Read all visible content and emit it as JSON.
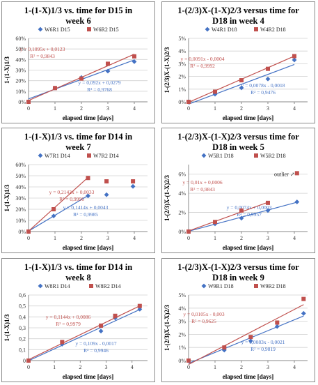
{
  "chart_data": [
    {
      "type": "scatter",
      "title": "1-(1-X)1/3 vs. time for D15 in week 6",
      "title_lines": [
        "1-(1-X)1/3 vs. time for D15 in",
        "week 6"
      ],
      "xlabel": "elapsed time [days]",
      "ylabel": "1-(1-X)1/3",
      "xlim": [
        0,
        4.5
      ],
      "xticks": [
        0,
        1,
        2,
        3,
        4
      ],
      "ylim": [
        0,
        0.6
      ],
      "yticks": [
        0,
        0.1,
        0.2,
        0.3,
        0.4,
        0.5,
        0.6
      ],
      "ytick_labels": [
        "0%",
        "10%",
        "20%",
        "30%",
        "40%",
        "50%",
        "60%"
      ],
      "legend": "top",
      "series": [
        {
          "name": "W6R1 D15",
          "marker": "diamond",
          "color": "#4472c4",
          "x": [
            0,
            1,
            2,
            3,
            4
          ],
          "y": [
            0,
            0.13,
            0.23,
            0.29,
            0.38
          ],
          "fit": {
            "slope": 0.092,
            "intercept": 0.0279,
            "x_range": [
              0,
              4
            ]
          },
          "equation": "y = 0,092x + 0,0279",
          "r2": "R² = 0,9768"
        },
        {
          "name": "W6R2 D15",
          "marker": "square",
          "color": "#c0504d",
          "x": [
            0,
            1,
            2,
            3,
            4
          ],
          "y": [
            0,
            0.13,
            0.22,
            0.36,
            0.43
          ],
          "fit": {
            "slope": 0.1095,
            "intercept": 0.0123,
            "x_range": [
              0,
              4
            ]
          },
          "equation": "y = 0,1095x + 0,0123",
          "r2": "R² = 0,9843"
        }
      ]
    },
    {
      "type": "scatter",
      "title": "1-(2/3)X-(1-X)2/3 versus time for D18 in week 4",
      "title_lines": [
        "1-(2/3)X-(1-X)2/3 versus time for",
        "D18 in week 4"
      ],
      "xlabel": "elapsed time [days]",
      "ylabel": "1-(2/3)X-(1-X)2/3",
      "xlim": [
        0,
        4.5
      ],
      "xticks": [
        0,
        1,
        2,
        3,
        4
      ],
      "ylim": [
        0,
        0.05
      ],
      "yticks": [
        0,
        0.01,
        0.02,
        0.03,
        0.04,
        0.05
      ],
      "ytick_labels": [
        "0%",
        "1%",
        "2%",
        "3%",
        "4%",
        "5%"
      ],
      "legend": "top",
      "series": [
        {
          "name": "W4R1 D18",
          "marker": "diamond",
          "color": "#4472c4",
          "x": [
            0,
            1,
            2,
            3,
            4
          ],
          "y": [
            0,
            0.006,
            0.011,
            0.018,
            0.033
          ],
          "fit": {
            "slope": 0.0078,
            "intercept": -0.0018,
            "x_range": [
              0,
              4
            ]
          },
          "equation": "y = 0,0078x - 0,0018",
          "r2": "R² = 0,9476"
        },
        {
          "name": "W4R2 D18",
          "marker": "square",
          "color": "#c0504d",
          "x": [
            0,
            1,
            2,
            3,
            4
          ],
          "y": [
            0,
            0.008,
            0.017,
            0.026,
            0.036
          ],
          "fit": {
            "slope": 0.0091,
            "intercept": -0.0004,
            "x_range": [
              0,
              4
            ]
          },
          "equation": "y = 0,0091x - 0,0004",
          "r2": "R² = 0,9992"
        }
      ]
    },
    {
      "type": "scatter",
      "title": "1-(1-X)1/3 vs. time for D14 in week 7",
      "title_lines": [
        "1-(1-X)1/3 vs. time for D14 in",
        "week 7"
      ],
      "xlabel": "elapsed time [days]",
      "ylabel": "1-(1-X)1/3",
      "xlim": [
        0,
        4.5
      ],
      "xticks": [
        0,
        1,
        2,
        3,
        4
      ],
      "ylim": [
        0,
        0.6
      ],
      "yticks": [
        0,
        0.1,
        0.2,
        0.3,
        0.4,
        0.5,
        0.6
      ],
      "ytick_labels": [
        "0%",
        "10%",
        "20%",
        "30%",
        "40%",
        "50%",
        "60%"
      ],
      "legend": "top",
      "series": [
        {
          "name": "W7R1 D14",
          "marker": "diamond",
          "color": "#4472c4",
          "x": [
            0,
            0.95,
            2.25,
            2.95,
            3.95
          ],
          "y": [
            0,
            0.14,
            0.32,
            0.33,
            0.405
          ],
          "fit": {
            "slope": 0.1414,
            "intercept": 0.0043,
            "x_range": [
              0,
              2.25
            ]
          },
          "equation": "y = 0,1414x + 0,0043",
          "r2": "R² = 0,9985"
        },
        {
          "name": "W7R2 D14",
          "marker": "square",
          "color": "#c0504d",
          "x": [
            0,
            0.95,
            2.25,
            2.95,
            3.95
          ],
          "y": [
            0,
            0.2,
            0.48,
            0.45,
            0.45
          ],
          "fit": {
            "slope": 0.2142,
            "intercept": 0.0033,
            "x_range": [
              0,
              2.25
            ]
          },
          "equation": "y = 0,2142x + 0,0033",
          "r2": "R² = 0,9996"
        }
      ]
    },
    {
      "type": "scatter",
      "title": "1-(2/3)X-(1-X)2/3 versus time for D18 in week 5",
      "title_lines": [
        "1-(2/3)X-(1-X)2/3 versus time for",
        "D18 in week 5"
      ],
      "xlabel": "elapsed time [days]",
      "ylabel": "1-(2/3)X-(1-X)2/3",
      "xlim": [
        0,
        4.5
      ],
      "xticks": [
        0,
        1,
        2,
        3,
        4
      ],
      "ylim": [
        0,
        0.07
      ],
      "yticks": [
        0,
        0.02,
        0.04,
        0.06
      ],
      "ytick_labels": [
        "0%",
        "2%",
        "4%",
        "6%"
      ],
      "legend": "top",
      "annotation": "outlier ↗",
      "series": [
        {
          "name": "W5R1 D18",
          "marker": "diamond",
          "color": "#4472c4",
          "x": [
            0,
            1,
            2,
            3,
            4.1
          ],
          "y": [
            0,
            0.008,
            0.014,
            0.022,
            0.031
          ],
          "fit": {
            "slope": 0.0074,
            "intercept": 0.0003,
            "x_range": [
              0,
              4.1
            ]
          },
          "equation": "y = 0,0074x + 0,0003",
          "r2": "R² = 0,9957"
        },
        {
          "name": "W5R2 D18",
          "marker": "square",
          "color": "#c0504d",
          "x": [
            0,
            1,
            2,
            3,
            4.1
          ],
          "y": [
            0,
            0.01,
            0.022,
            0.03,
            0.061
          ],
          "fit": {
            "slope": 0.01,
            "intercept": 0.0006,
            "x_range": [
              0,
              3
            ]
          },
          "equation": "y = 0,01x + 0,0006",
          "r2": "R² = 0,9843"
        }
      ]
    },
    {
      "type": "scatter",
      "title": "1-(1-X)1/3 vs. time for D14 in week 8",
      "title_lines": [
        "1-(1-X)1/3 vs. time for D14 in",
        "week 8"
      ],
      "xlabel": "elapsed time [days]",
      "ylabel": "1-(1-X)1/3",
      "xlim": [
        0,
        4.6
      ],
      "xticks": [
        0,
        1,
        2,
        3,
        4
      ],
      "ylim": [
        0,
        0.6
      ],
      "yticks": [
        0,
        0.1,
        0.2,
        0.3,
        0.4,
        0.5,
        0.6
      ],
      "ytick_labels": [
        "0",
        "0,1",
        "0,2",
        "0,3",
        "0,4",
        "0,5",
        "0,6"
      ],
      "legend": "top",
      "series": [
        {
          "name": "W8R1 D14",
          "marker": "diamond",
          "color": "#4472c4",
          "x": [
            0,
            1.3,
            2.8,
            3.35,
            4.3
          ],
          "y": [
            0,
            0.15,
            0.27,
            0.39,
            0.47
          ],
          "fit": {
            "slope": 0.109,
            "intercept": -0.0017,
            "x_range": [
              0,
              4.3
            ]
          },
          "equation": "y = 0,109x - 0,0017",
          "r2": "R² = 0,9946"
        },
        {
          "name": "W8R2 D14",
          "marker": "square",
          "color": "#c0504d",
          "x": [
            0,
            1.3,
            2.8,
            3.35,
            4.3
          ],
          "y": [
            0,
            0.17,
            0.32,
            0.41,
            0.5
          ],
          "fit": {
            "slope": 0.1144,
            "intercept": 0.0086,
            "x_range": [
              0,
              4.3
            ]
          },
          "equation": "y = 0,1144x + 0,0086",
          "r2": "R² = 0,9979"
        }
      ]
    },
    {
      "type": "scatter",
      "title": "1-(2/3)X-(1-X)2/3 versus time for D18 in week 9",
      "title_lines": [
        "1-(2/3)X-(1-X)2/3 versus time for",
        "D18 in week 9"
      ],
      "xlabel": "elapsed time [days]",
      "ylabel": "1-(2/3)X-(1-X)2/3",
      "xlim": [
        0,
        4.5
      ],
      "xticks": [
        0,
        1,
        2,
        3,
        4
      ],
      "ylim": [
        0,
        0.05
      ],
      "yticks": [
        0,
        0.01,
        0.02,
        0.03,
        0.04,
        0.05
      ],
      "ytick_labels": [
        "0%",
        "1%",
        "2%",
        "3%",
        "4%",
        "5%"
      ],
      "legend": "top",
      "series": [
        {
          "name": "W9R1 D18",
          "marker": "diamond",
          "color": "#4472c4",
          "x": [
            0,
            1.35,
            2.35,
            3.35,
            4.35
          ],
          "y": [
            0,
            0.008,
            0.015,
            0.026,
            0.036
          ],
          "fit": {
            "slope": 0.0083,
            "intercept": -0.0021,
            "x_range": [
              0,
              4.35
            ]
          },
          "equation": "y = 0,0083x - 0,0021",
          "r2": "R² = 0,9819"
        },
        {
          "name": "W9R2 D18",
          "marker": "square",
          "color": "#c0504d",
          "x": [
            0,
            1.35,
            2.35,
            3.35,
            4.35
          ],
          "y": [
            0,
            0.01,
            0.018,
            0.029,
            0.047
          ],
          "fit": {
            "slope": 0.0105,
            "intercept": -0.003,
            "x_range": [
              0,
              4.35
            ]
          },
          "equation": "y = 0,0105x - 0,003",
          "r2": "R² = 0,9625"
        }
      ]
    }
  ]
}
